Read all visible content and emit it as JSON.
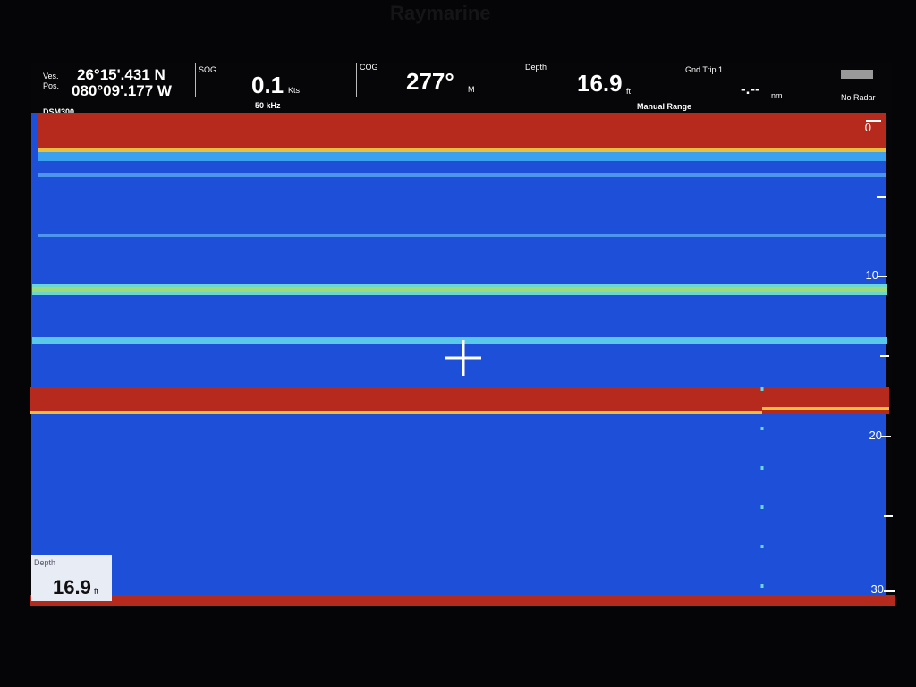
{
  "brand": "Raymarine",
  "header": {
    "position": {
      "label": "Ves. Pos.",
      "lat": "26°15'.431 N",
      "lon": "080°09'.177 W"
    },
    "sounder": "DSM300",
    "sog": {
      "label": "SOG",
      "value": "0.1",
      "unit": "Kts",
      "frequency": "50 kHz"
    },
    "cog": {
      "label": "COG",
      "value": "277°",
      "unit": "M"
    },
    "depth": {
      "label": "Depth",
      "value": "16.9",
      "unit": "ft",
      "mode": "Manual Range"
    },
    "trip": {
      "label": "Gnd Trip 1",
      "value": "-.--",
      "unit": "nm"
    },
    "radar": "No Radar"
  },
  "scale": {
    "labels": [
      "0",
      "10",
      "20",
      "30"
    ]
  },
  "depth_box": {
    "label": "Depth",
    "value": "16.9",
    "unit": "ft"
  }
}
